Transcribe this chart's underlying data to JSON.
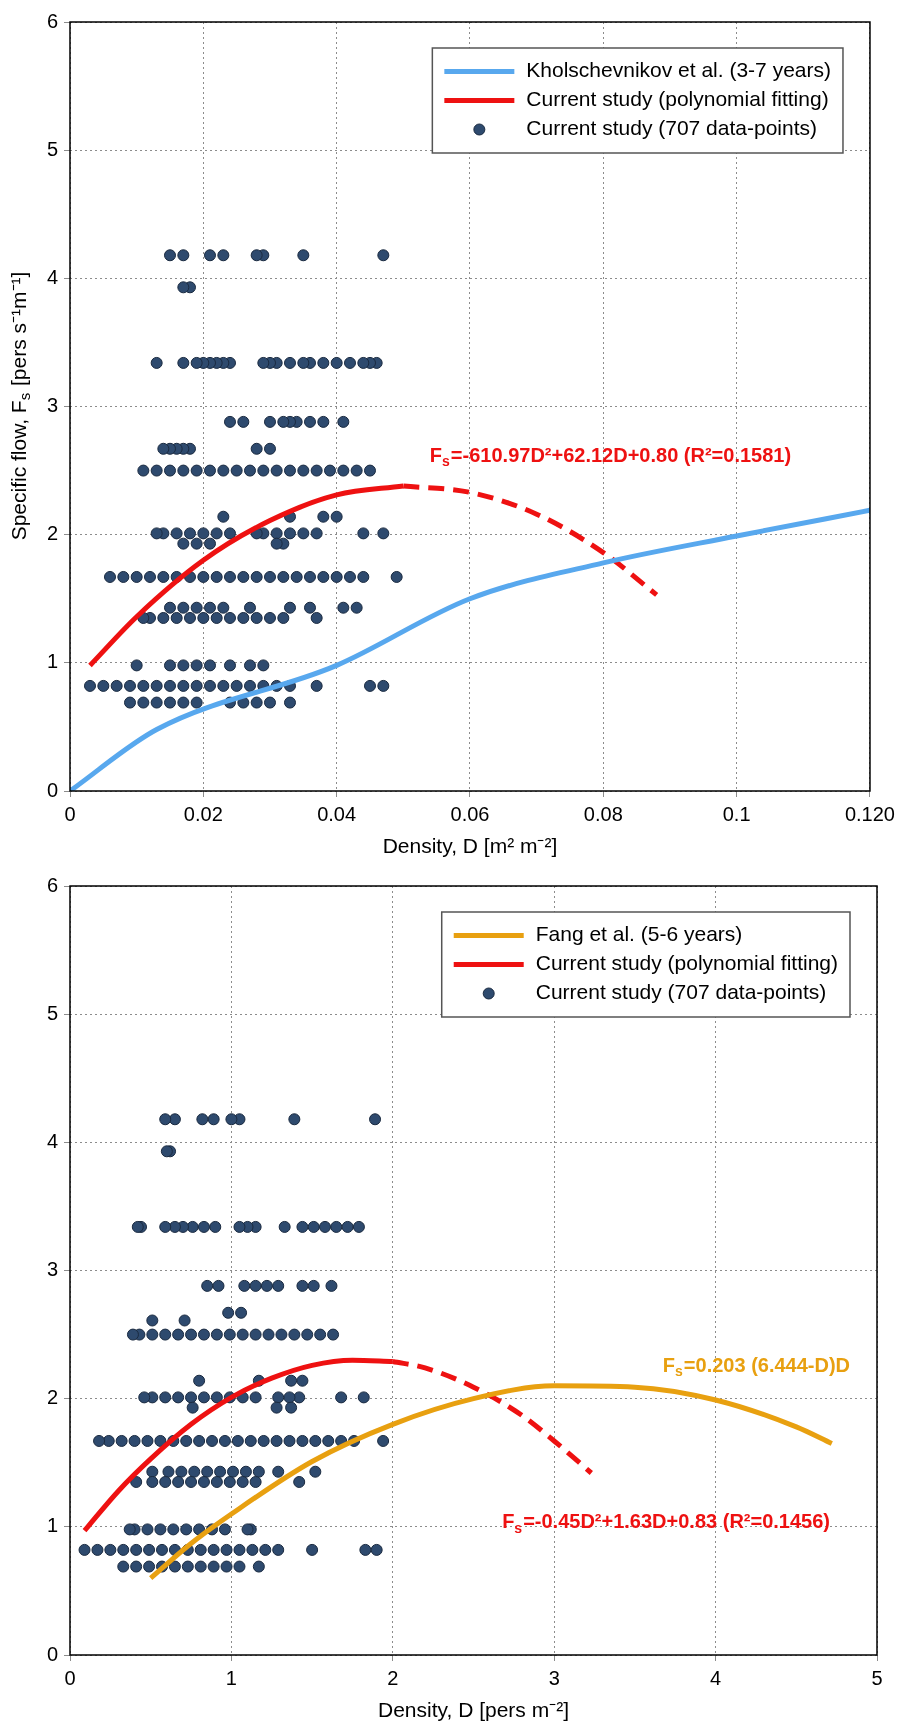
{
  "chart_data": [
    {
      "type": "scatter",
      "xlabel": "Density, D [m² m⁻²]",
      "ylabel": "Specific flow, F$_{s}$ [pers s⁻¹m⁻¹]",
      "xlim": [
        0,
        0.12
      ],
      "xticks": [
        0,
        0.02,
        0.04,
        0.06,
        0.08,
        0.1,
        {
          "value": 0.12,
          "label": "0.120"
        }
      ],
      "ylim": [
        0,
        6
      ],
      "yticks": [
        0,
        1,
        2,
        3,
        4,
        5,
        6
      ],
      "grid": true,
      "legend": "top right",
      "annotations": [
        "F$_{s}$=-610.97D²+62.12D+0.80 (R²=0.1581)"
      ],
      "series": [
        {
          "name": "Kholschevnikov et al. (3-7 years)",
          "type": "line",
          "color": "#58a8ee",
          "x": [
            0,
            0.013,
            0.04,
            0.06,
            0.08,
            0.1,
            0.12
          ],
          "values": [
            0,
            0.48,
            0.98,
            1.5,
            1.78,
            1.99,
            2.19
          ]
        },
        {
          "name": "Current study (polynomial fitting)",
          "type": "line",
          "color": "#ee1111",
          "x": [
            0.003,
            0.01,
            0.02,
            0.03,
            0.04,
            0.05
          ],
          "values": [
            0.98,
            1.36,
            1.8,
            2.11,
            2.31,
            2.38
          ]
        },
        {
          "type": "line",
          "line_style": "dashed",
          "color": "#ee1111",
          "x": [
            0.05,
            0.06,
            0.07,
            0.08,
            0.088
          ],
          "values": [
            2.38,
            2.33,
            2.16,
            1.86,
            1.53
          ]
        },
        {
          "name": "Current study (707 data-points)",
          "marker": "circle",
          "color": "#2e4a6e",
          "x": [
            0.047,
            0.035,
            0.029,
            0.028,
            0.023,
            0.021,
            0.017,
            0.015,
            0.018,
            0.017,
            0.046,
            0.045,
            0.044,
            0.042,
            0.04,
            0.038,
            0.036,
            0.035,
            0.033,
            0.031,
            0.03,
            0.029,
            0.024,
            0.023,
            0.022,
            0.021,
            0.02,
            0.019,
            0.017,
            0.013,
            0.041,
            0.038,
            0.036,
            0.034,
            0.033,
            0.032,
            0.03,
            0.026,
            0.024,
            0.03,
            0.028,
            0.018,
            0.017,
            0.016,
            0.015,
            0.014,
            0.045,
            0.043,
            0.041,
            0.039,
            0.037,
            0.035,
            0.033,
            0.031,
            0.029,
            0.027,
            0.025,
            0.023,
            0.021,
            0.019,
            0.017,
            0.015,
            0.013,
            0.011,
            0.04,
            0.038,
            0.033,
            0.023,
            0.047,
            0.044,
            0.037,
            0.035,
            0.033,
            0.031,
            0.029,
            0.028,
            0.024,
            0.022,
            0.02,
            0.018,
            0.016,
            0.014,
            0.013,
            0.032,
            0.031,
            0.021,
            0.019,
            0.017,
            0.049,
            0.044,
            0.042,
            0.04,
            0.038,
            0.036,
            0.034,
            0.032,
            0.03,
            0.028,
            0.026,
            0.024,
            0.022,
            0.02,
            0.018,
            0.016,
            0.014,
            0.012,
            0.01,
            0.008,
            0.006,
            0.043,
            0.041,
            0.036,
            0.033,
            0.027,
            0.023,
            0.021,
            0.019,
            0.017,
            0.015,
            0.037,
            0.032,
            0.03,
            0.028,
            0.026,
            0.024,
            0.022,
            0.02,
            0.018,
            0.016,
            0.014,
            0.012,
            0.011,
            0.029,
            0.027,
            0.024,
            0.021,
            0.019,
            0.017,
            0.015,
            0.01,
            0.047,
            0.045,
            0.037,
            0.033,
            0.031,
            0.029,
            0.027,
            0.025,
            0.023,
            0.021,
            0.019,
            0.017,
            0.015,
            0.013,
            0.011,
            0.009,
            0.007,
            0.005,
            0.003,
            0.033,
            0.03,
            0.028,
            0.026,
            0.024,
            0.019,
            0.017,
            0.015,
            0.013,
            0.011,
            0.009
          ],
          "values": [
            4.18,
            4.18,
            4.18,
            4.18,
            4.18,
            4.18,
            4.18,
            4.18,
            3.93,
            3.93,
            3.34,
            3.34,
            3.34,
            3.34,
            3.34,
            3.34,
            3.34,
            3.34,
            3.34,
            3.34,
            3.34,
            3.34,
            3.34,
            3.34,
            3.34,
            3.34,
            3.34,
            3.34,
            3.34,
            3.34,
            2.88,
            2.88,
            2.88,
            2.88,
            2.88,
            2.88,
            2.88,
            2.88,
            2.88,
            2.67,
            2.67,
            2.67,
            2.67,
            2.67,
            2.67,
            2.67,
            2.5,
            2.5,
            2.5,
            2.5,
            2.5,
            2.5,
            2.5,
            2.5,
            2.5,
            2.5,
            2.5,
            2.5,
            2.5,
            2.5,
            2.5,
            2.5,
            2.5,
            2.5,
            2.14,
            2.14,
            2.14,
            2.14,
            2.01,
            2.01,
            2.01,
            2.01,
            2.01,
            2.01,
            2.01,
            2.01,
            2.01,
            2.01,
            2.01,
            2.01,
            2.01,
            2.01,
            2.01,
            1.93,
            1.93,
            1.93,
            1.93,
            1.93,
            1.67,
            1.67,
            1.67,
            1.67,
            1.67,
            1.67,
            1.67,
            1.67,
            1.67,
            1.67,
            1.67,
            1.67,
            1.67,
            1.67,
            1.67,
            1.67,
            1.67,
            1.67,
            1.67,
            1.67,
            1.67,
            1.43,
            1.43,
            1.43,
            1.43,
            1.43,
            1.43,
            1.43,
            1.43,
            1.43,
            1.43,
            1.35,
            1.35,
            1.35,
            1.35,
            1.35,
            1.35,
            1.35,
            1.35,
            1.35,
            1.35,
            1.35,
            1.35,
            1.35,
            0.98,
            0.98,
            0.98,
            0.98,
            0.98,
            0.98,
            0.98,
            0.98,
            0.82,
            0.82,
            0.82,
            0.82,
            0.82,
            0.82,
            0.82,
            0.82,
            0.82,
            0.82,
            0.82,
            0.82,
            0.82,
            0.82,
            0.82,
            0.82,
            0.82,
            0.82,
            0.82,
            0.69,
            0.69,
            0.69,
            0.69,
            0.69,
            0.69,
            0.69,
            0.69,
            0.69,
            0.69,
            0.69
          ]
        }
      ]
    },
    {
      "type": "scatter",
      "xlabel": "Density, D [pers m⁻²]",
      "xlim": [
        0,
        5
      ],
      "xticks": [
        0,
        1,
        2,
        3,
        4,
        5
      ],
      "ylim": [
        0,
        6
      ],
      "yticks": [
        0,
        1,
        2,
        3,
        4,
        5,
        6
      ],
      "grid": true,
      "legend": "top right",
      "annotations": [
        "F$_{s}$=0.203 (6.444-D)D",
        "F$_{s}$=-0.45D²+1.63D+0.83 (R²=0.1456)"
      ],
      "series": [
        {
          "name": "Fang et al. (5-6 years)",
          "type": "line",
          "color": "#e8a010",
          "x": [
            0.5,
            0.75,
            1,
            1.5,
            2,
            2.5,
            3,
            3.5,
            4,
            4.5,
            4.72
          ],
          "values": [
            0.6,
            0.87,
            1.1,
            1.51,
            1.8,
            2.0,
            2.1,
            2.09,
            1.99,
            1.78,
            1.65
          ]
        },
        {
          "name": "Current study (polynomial fitting)",
          "type": "line",
          "color": "#ee1111",
          "x": [
            0.09,
            0.3,
            0.5,
            0.75,
            1,
            1.25,
            1.5,
            1.75,
            2
          ],
          "values": [
            0.97,
            1.28,
            1.53,
            1.8,
            2.01,
            2.16,
            2.26,
            2.3,
            2.29
          ]
        },
        {
          "type": "line",
          "line_style": "dashed",
          "color": "#ee1111",
          "x": [
            2,
            2.2,
            2.5,
            2.8,
            3,
            3.23
          ],
          "values": [
            2.29,
            2.24,
            2.09,
            1.87,
            1.67,
            1.42
          ]
        },
        {
          "name": "Current study (707 data-points)",
          "marker": "circle",
          "color": "#2e4a6e",
          "x": [
            1.89,
            1.39,
            1.05,
            1.0,
            0.89,
            0.82,
            0.65,
            0.59,
            0.62,
            0.6,
            1.79,
            1.72,
            1.65,
            1.58,
            1.51,
            1.44,
            1.33,
            1.15,
            1.1,
            1.05,
            0.9,
            0.83,
            0.76,
            0.7,
            0.65,
            0.59,
            0.44,
            0.42,
            1.62,
            1.51,
            1.44,
            1.29,
            1.22,
            1.15,
            1.08,
            0.92,
            0.85,
            1.06,
            0.98,
            0.71,
            0.51,
            1.63,
            1.55,
            1.47,
            1.39,
            1.31,
            1.23,
            1.15,
            1.07,
            0.99,
            0.91,
            0.83,
            0.75,
            0.67,
            0.59,
            0.51,
            0.43,
            0.39,
            1.44,
            1.37,
            1.17,
            0.8,
            1.82,
            1.68,
            1.42,
            1.36,
            1.29,
            1.15,
            1.07,
            0.99,
            0.91,
            0.83,
            0.75,
            0.67,
            0.59,
            0.51,
            0.46,
            1.37,
            1.28,
            0.76,
            1.94,
            1.76,
            1.68,
            1.6,
            1.52,
            1.44,
            1.36,
            1.28,
            1.2,
            1.12,
            1.04,
            0.96,
            0.88,
            0.8,
            0.72,
            0.64,
            0.56,
            0.48,
            0.4,
            0.32,
            0.24,
            0.18,
            1.52,
            1.29,
            1.17,
            1.09,
            1.01,
            0.93,
            0.85,
            0.77,
            0.69,
            0.61,
            0.51,
            1.42,
            1.15,
            1.07,
            0.99,
            0.91,
            0.83,
            0.75,
            0.67,
            0.59,
            0.51,
            0.41,
            1.12,
            1.1,
            0.96,
            0.88,
            0.8,
            0.72,
            0.64,
            0.56,
            0.48,
            0.4,
            0.37,
            1.9,
            1.83,
            1.5,
            1.29,
            1.21,
            1.13,
            1.05,
            0.97,
            0.89,
            0.81,
            0.73,
            0.65,
            0.57,
            0.49,
            0.41,
            0.33,
            0.25,
            0.17,
            0.09,
            1.17,
            1.05,
            0.97,
            0.89,
            0.81,
            0.73,
            0.65,
            0.57,
            0.49,
            0.41,
            0.33
          ],
          "values": [
            4.18,
            4.18,
            4.18,
            4.18,
            4.18,
            4.18,
            4.18,
            4.18,
            3.93,
            3.93,
            3.34,
            3.34,
            3.34,
            3.34,
            3.34,
            3.34,
            3.34,
            3.34,
            3.34,
            3.34,
            3.34,
            3.34,
            3.34,
            3.34,
            3.34,
            3.34,
            3.34,
            3.34,
            2.88,
            2.88,
            2.88,
            2.88,
            2.88,
            2.88,
            2.88,
            2.88,
            2.88,
            2.67,
            2.67,
            2.61,
            2.61,
            2.5,
            2.5,
            2.5,
            2.5,
            2.5,
            2.5,
            2.5,
            2.5,
            2.5,
            2.5,
            2.5,
            2.5,
            2.5,
            2.5,
            2.5,
            2.5,
            2.5,
            2.14,
            2.14,
            2.14,
            2.14,
            2.01,
            2.01,
            2.01,
            2.01,
            2.01,
            2.01,
            2.01,
            2.01,
            2.01,
            2.01,
            2.01,
            2.01,
            2.01,
            2.01,
            2.01,
            1.93,
            1.93,
            1.93,
            1.67,
            1.67,
            1.67,
            1.67,
            1.67,
            1.67,
            1.67,
            1.67,
            1.67,
            1.67,
            1.67,
            1.67,
            1.67,
            1.67,
            1.67,
            1.67,
            1.67,
            1.67,
            1.67,
            1.67,
            1.67,
            1.67,
            1.43,
            1.43,
            1.43,
            1.43,
            1.43,
            1.43,
            1.43,
            1.43,
            1.43,
            1.43,
            1.43,
            1.35,
            1.35,
            1.35,
            1.35,
            1.35,
            1.35,
            1.35,
            1.35,
            1.35,
            1.35,
            1.35,
            0.98,
            0.98,
            0.98,
            0.98,
            0.98,
            0.98,
            0.98,
            0.98,
            0.98,
            0.98,
            0.98,
            0.82,
            0.82,
            0.82,
            0.82,
            0.82,
            0.82,
            0.82,
            0.82,
            0.82,
            0.82,
            0.82,
            0.82,
            0.82,
            0.82,
            0.82,
            0.82,
            0.82,
            0.82,
            0.82,
            0.69,
            0.69,
            0.69,
            0.69,
            0.69,
            0.69,
            0.69,
            0.69,
            0.69,
            0.69,
            0.69
          ]
        }
      ]
    }
  ]
}
